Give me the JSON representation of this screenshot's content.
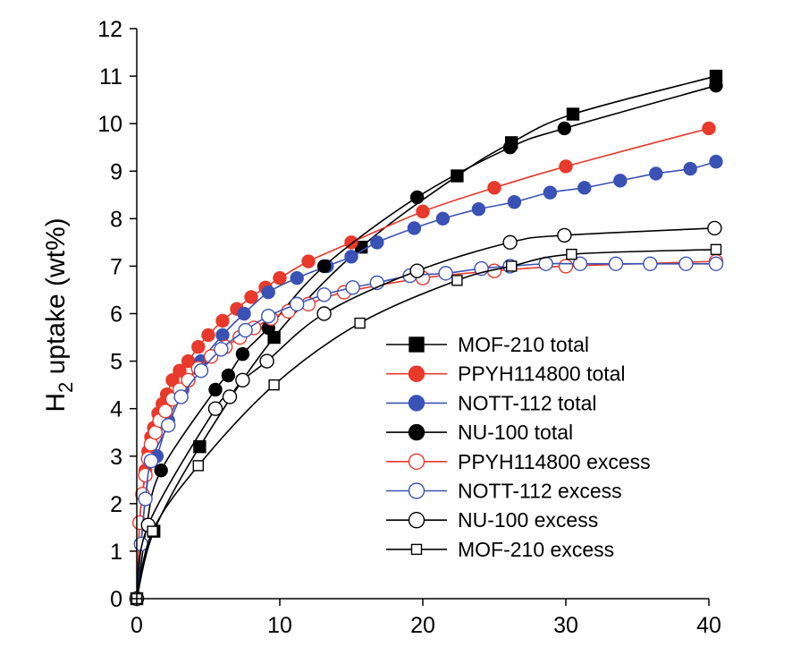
{
  "chart_data": {
    "type": "line",
    "title": "",
    "xlabel": "",
    "ylabel": {
      "prefix": "H",
      "subscript": "2",
      "suffix": " uptake  (wt%)"
    },
    "xlim": [
      0,
      40
    ],
    "ylim": [
      0,
      12
    ],
    "x_ticks": [
      0,
      10,
      20,
      30,
      40
    ],
    "y_ticks": [
      0,
      1,
      2,
      3,
      4,
      5,
      6,
      7,
      8,
      9,
      10,
      11,
      12
    ],
    "grid": false,
    "legend_position": "bottom-right",
    "series": [
      {
        "name": "MOF-210 total",
        "color": "#000000",
        "marker": "square",
        "filled": true,
        "x": [
          0,
          1.2,
          4.4,
          9.6,
          15.7,
          22.4,
          26.2,
          30.5,
          40.5
        ],
        "y": [
          0,
          1.42,
          3.2,
          5.5,
          7.4,
          8.9,
          9.6,
          10.2,
          11.0
        ]
      },
      {
        "name": "PPYH114800 total",
        "color": "#e8392b",
        "marker": "circle",
        "filled": true,
        "x": [
          0,
          0.2,
          0.4,
          0.6,
          0.8,
          1.0,
          1.2,
          1.5,
          1.8,
          2.1,
          2.5,
          3.0,
          3.6,
          4.3,
          5.0,
          6.0,
          7.0,
          8.0,
          9.0,
          10.0,
          12.0,
          15.0,
          20.0,
          25.0,
          30.0,
          40.0
        ],
        "y": [
          0,
          1.6,
          2.2,
          2.7,
          3.1,
          3.4,
          3.6,
          3.9,
          4.1,
          4.3,
          4.6,
          4.8,
          5.0,
          5.3,
          5.55,
          5.85,
          6.1,
          6.35,
          6.55,
          6.75,
          7.1,
          7.5,
          8.15,
          8.65,
          9.1,
          9.9
        ]
      },
      {
        "name": "NOTT-112 total",
        "color": "#3a52b5",
        "marker": "circle",
        "filled": true,
        "x": [
          0,
          0.3,
          0.6,
          1.0,
          1.4,
          2.2,
          3.2,
          4.5,
          6.0,
          7.5,
          9.2,
          11.2,
          13.3,
          15.0,
          16.8,
          19.4,
          21.4,
          23.9,
          26.4,
          28.9,
          31.3,
          33.8,
          36.3,
          38.7,
          40.5
        ],
        "y": [
          0,
          1.15,
          2.1,
          2.9,
          3.0,
          3.75,
          4.4,
          5.0,
          5.55,
          6.0,
          6.45,
          6.75,
          7.0,
          7.2,
          7.5,
          7.8,
          8.0,
          8.2,
          8.35,
          8.55,
          8.65,
          8.8,
          8.95,
          9.05,
          9.2
        ]
      },
      {
        "name": "NU-100 total",
        "color": "#000000",
        "marker": "circle",
        "filled": true,
        "x": [
          0,
          0.7,
          1.7,
          5.5,
          6.4,
          7.4,
          9.2,
          13.1,
          19.6,
          26.1,
          29.9,
          40.5
        ],
        "y": [
          0,
          1.55,
          2.7,
          4.4,
          4.7,
          5.15,
          5.7,
          7.0,
          8.45,
          9.5,
          9.9,
          10.8
        ]
      },
      {
        "name": "PPYH114800 excess",
        "color": "#e8392b",
        "marker": "circle",
        "filled": false,
        "x": [
          0,
          0.2,
          0.4,
          0.6,
          0.8,
          1.0,
          1.3,
          1.6,
          2.0,
          2.5,
          3.0,
          3.6,
          4.3,
          5.2,
          6.2,
          7.2,
          8.2,
          9.4,
          10.6,
          12.0,
          14.5,
          20.0,
          25.0,
          30.0,
          40.5
        ],
        "y": [
          0,
          1.6,
          2.2,
          2.6,
          2.95,
          3.25,
          3.5,
          3.75,
          3.95,
          4.2,
          4.4,
          4.6,
          4.85,
          5.1,
          5.3,
          5.5,
          5.7,
          5.9,
          6.05,
          6.2,
          6.45,
          6.75,
          6.9,
          7.0,
          7.1
        ]
      },
      {
        "name": "NOTT-112 excess",
        "color": "#3a52b5",
        "marker": "circle",
        "filled": false,
        "x": [
          0,
          0.3,
          0.6,
          1.0,
          2.2,
          3.1,
          4.5,
          5.9,
          7.6,
          9.2,
          11.2,
          13.1,
          15.1,
          16.8,
          19.1,
          21.6,
          24.1,
          26.1,
          28.6,
          31.0,
          33.5,
          35.9,
          38.4,
          40.5
        ],
        "y": [
          0,
          1.15,
          2.1,
          2.9,
          3.65,
          4.25,
          4.8,
          5.25,
          5.65,
          5.95,
          6.2,
          6.4,
          6.55,
          6.65,
          6.8,
          6.85,
          6.95,
          7.0,
          7.05,
          7.05,
          7.05,
          7.05,
          7.05,
          7.05
        ]
      },
      {
        "name": "NU-100 excess",
        "color": "#000000",
        "marker": "circle",
        "filled": false,
        "x": [
          0,
          0.8,
          5.5,
          6.5,
          7.4,
          9.1,
          13.1,
          19.6,
          26.1,
          29.9,
          40.4
        ],
        "y": [
          0,
          1.55,
          4.0,
          4.25,
          4.6,
          5.0,
          6.0,
          6.9,
          7.5,
          7.65,
          7.8
        ]
      },
      {
        "name": "MOF-210 excess",
        "color": "#000000",
        "marker": "square",
        "filled": false,
        "x": [
          0,
          1.1,
          4.3,
          9.6,
          15.6,
          22.4,
          26.2,
          30.4,
          40.5
        ],
        "y": [
          0,
          1.42,
          2.8,
          4.5,
          5.8,
          6.7,
          7.0,
          7.25,
          7.35
        ]
      }
    ]
  }
}
